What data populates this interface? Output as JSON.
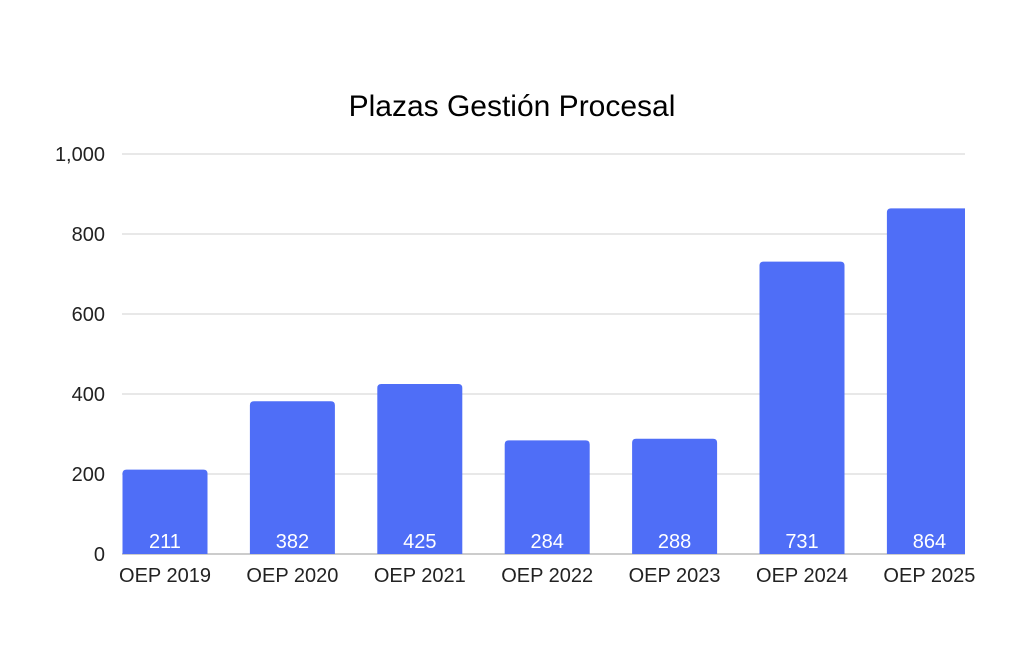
{
  "chart_data": {
    "type": "bar",
    "title": "Plazas Gestión Procesal",
    "xlabel": "",
    "ylabel": "",
    "categories": [
      "OEP 2019",
      "OEP 2020",
      "OEP 2021",
      "OEP 2022",
      "OEP 2023",
      "OEP 2024",
      "OEP 2025"
    ],
    "values": [
      211,
      382,
      425,
      284,
      288,
      731,
      864
    ],
    "data_labels": [
      "211",
      "382",
      "425",
      "284",
      "288",
      "731",
      "864"
    ],
    "ylim": [
      0,
      1000
    ],
    "yticks": [
      0,
      200,
      400,
      600,
      800,
      1000
    ],
    "ytick_labels": [
      "0",
      "200",
      "400",
      "600",
      "800",
      "1,000"
    ],
    "grid": true,
    "legend": "none",
    "bar_color": "#4f6ef7"
  }
}
